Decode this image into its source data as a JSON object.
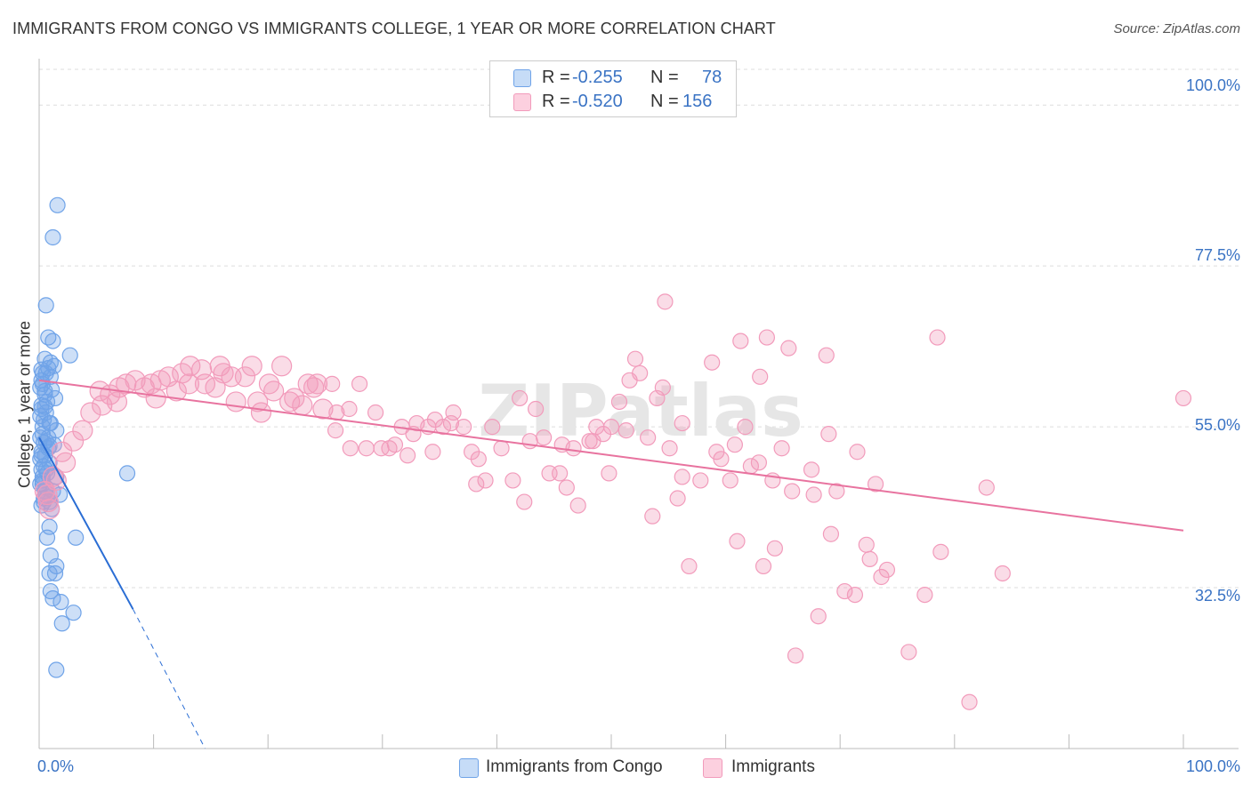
{
  "title": "IMMIGRANTS FROM CONGO VS IMMIGRANTS COLLEGE, 1 YEAR OR MORE CORRELATION CHART",
  "source": "Source: ZipAtlas.com",
  "watermark": "ZIPatlas",
  "colors": {
    "blue": "#6fa3e8",
    "blue_line": "#2a6dd4",
    "pink": "#f29bbb",
    "pink_line": "#e8739f",
    "axis_text": "#3a73c4"
  },
  "legend": {
    "rows": [
      {
        "r_label": "R = ",
        "r_value": "-0.255",
        "n_label": "N = ",
        "n_value": "78",
        "color": "blue"
      },
      {
        "r_label": "R = ",
        "r_value": "-0.520",
        "n_label": "N = ",
        "n_value": "156",
        "color": "pink"
      }
    ]
  },
  "bottom_legend": [
    "Immigrants from Congo",
    "Immigrants"
  ],
  "chart_data": {
    "type": "scatter",
    "title": "IMMIGRANTS FROM CONGO VS IMMIGRANTS COLLEGE, 1 YEAR OR MORE CORRELATION CHART",
    "xlabel": "",
    "ylabel": "College, 1 year or more",
    "xlim": [
      0,
      100
    ],
    "ylim": [
      10,
      105
    ],
    "x_tick_labels": [
      "0.0%",
      "100.0%"
    ],
    "y_tick_labels": [
      "100.0%",
      "77.5%",
      "55.0%",
      "32.5%"
    ],
    "y_ticks": [
      100,
      77.5,
      55,
      32.5
    ],
    "grid": true,
    "series": [
      {
        "name": "Immigrants from Congo",
        "color": "blue",
        "points": [
          [
            1.6,
            86
          ],
          [
            1.2,
            81.5
          ],
          [
            0.6,
            72
          ],
          [
            0.8,
            67.5
          ],
          [
            1.2,
            67
          ],
          [
            2.7,
            65
          ],
          [
            0.5,
            64.5
          ],
          [
            1.0,
            64
          ],
          [
            1.3,
            63.5
          ],
          [
            0.2,
            63
          ],
          [
            0.6,
            62.5
          ],
          [
            1.0,
            62
          ],
          [
            0.3,
            61
          ],
          [
            0.1,
            60.5
          ],
          [
            0.5,
            59.5
          ],
          [
            1.4,
            59
          ],
          [
            0.7,
            58.5
          ],
          [
            0.2,
            57.5
          ],
          [
            0.1,
            56.5
          ],
          [
            0.4,
            56
          ],
          [
            0.9,
            55.5
          ],
          [
            1.5,
            54.5
          ],
          [
            0.3,
            54
          ],
          [
            0.1,
            53.5
          ],
          [
            0.6,
            53
          ],
          [
            1.3,
            52.5
          ],
          [
            0.8,
            52
          ],
          [
            0.2,
            51.5
          ],
          [
            0.5,
            51
          ],
          [
            0.1,
            50.5
          ],
          [
            0.9,
            50
          ],
          [
            0.4,
            49.5
          ],
          [
            0.2,
            49
          ],
          [
            0.7,
            48.5
          ],
          [
            1.5,
            48
          ],
          [
            0.3,
            47.5
          ],
          [
            0.1,
            47
          ],
          [
            0.6,
            46.5
          ],
          [
            1.2,
            46
          ],
          [
            1.8,
            45.5
          ],
          [
            0.4,
            45
          ],
          [
            0.9,
            44.5
          ],
          [
            0.2,
            44
          ],
          [
            1.1,
            43.5
          ],
          [
            7.7,
            48.5
          ],
          [
            0.9,
            41
          ],
          [
            0.7,
            39.5
          ],
          [
            3.2,
            39.5
          ],
          [
            1.0,
            37
          ],
          [
            1.5,
            35.5
          ],
          [
            0.9,
            34.5
          ],
          [
            1.4,
            34.5
          ],
          [
            1.0,
            32
          ],
          [
            1.2,
            31
          ],
          [
            1.9,
            30.5
          ],
          [
            3.0,
            29
          ],
          [
            2.0,
            27.5
          ],
          [
            1.5,
            21
          ],
          [
            0.3,
            62.5
          ],
          [
            0.5,
            60
          ],
          [
            0.2,
            58
          ],
          [
            0.6,
            57
          ],
          [
            0.3,
            55
          ],
          [
            0.8,
            53.5
          ],
          [
            0.4,
            52.8
          ],
          [
            0.2,
            51
          ],
          [
            0.6,
            49
          ],
          [
            0.3,
            47
          ],
          [
            0.5,
            46
          ],
          [
            0.7,
            45.2
          ],
          [
            0.4,
            44.5
          ],
          [
            1.0,
            55.5
          ],
          [
            0.2,
            61.5
          ],
          [
            0.8,
            63.2
          ],
          [
            0.3,
            48
          ],
          [
            0.9,
            52.3
          ],
          [
            0.5,
            57.8
          ],
          [
            1.1,
            60.2
          ]
        ],
        "trend": {
          "x0": 0,
          "y0": 53.5,
          "x1": 8.2,
          "y1": 29.5,
          "dash_x1": 14.5,
          "dash_y1": 10
        }
      },
      {
        "name": "Immigrants",
        "color": "pink",
        "points": [
          [
            0.5,
            46
          ],
          [
            0.8,
            44.5
          ],
          [
            1.2,
            48
          ],
          [
            2.0,
            51.5
          ],
          [
            3.0,
            53
          ],
          [
            3.8,
            54.5
          ],
          [
            4.5,
            57
          ],
          [
            5.5,
            58
          ],
          [
            6.2,
            59.5
          ],
          [
            5.3,
            60
          ],
          [
            7.0,
            60.5
          ],
          [
            7.6,
            61
          ],
          [
            8.4,
            61.5
          ],
          [
            9.2,
            60.5
          ],
          [
            10.2,
            59
          ],
          [
            10.6,
            61.5
          ],
          [
            11.3,
            62
          ],
          [
            12.5,
            62.5
          ],
          [
            13.1,
            61
          ],
          [
            13.2,
            63.5
          ],
          [
            14.2,
            63
          ],
          [
            14.5,
            61
          ],
          [
            15.4,
            60.5
          ],
          [
            15.8,
            63.5
          ],
          [
            16.8,
            62
          ],
          [
            17.2,
            58.5
          ],
          [
            18.0,
            62
          ],
          [
            18.6,
            63.5
          ],
          [
            19.1,
            58.5
          ],
          [
            19.4,
            57
          ],
          [
            20.1,
            61
          ],
          [
            21.2,
            63.5
          ],
          [
            22.3,
            59
          ],
          [
            21.9,
            58.5
          ],
          [
            23.0,
            58
          ],
          [
            23.5,
            61
          ],
          [
            24.0,
            60.5
          ],
          [
            24.8,
            57.5
          ],
          [
            25.6,
            61
          ],
          [
            26.0,
            57
          ],
          [
            25.9,
            54.5
          ],
          [
            27.1,
            57.5
          ],
          [
            28.0,
            61
          ],
          [
            28.6,
            52
          ],
          [
            27.2,
            52
          ],
          [
            29.4,
            57
          ],
          [
            29.9,
            52
          ],
          [
            30.6,
            52
          ],
          [
            31.1,
            52.5
          ],
          [
            31.7,
            55
          ],
          [
            32.2,
            51
          ],
          [
            32.7,
            54
          ],
          [
            33.0,
            55.5
          ],
          [
            34.0,
            55
          ],
          [
            34.6,
            56
          ],
          [
            34.4,
            51.5
          ],
          [
            35.3,
            55
          ],
          [
            36.0,
            55.5
          ],
          [
            36.2,
            57
          ],
          [
            37.1,
            55
          ],
          [
            37.8,
            51.5
          ],
          [
            38.4,
            50.5
          ],
          [
            39.0,
            47.5
          ],
          [
            38.2,
            47
          ],
          [
            39.6,
            55
          ],
          [
            40.4,
            52
          ],
          [
            41.4,
            47.5
          ],
          [
            42.0,
            59
          ],
          [
            42.4,
            44.5
          ],
          [
            42.9,
            53
          ],
          [
            43.4,
            57.5
          ],
          [
            44.1,
            53.5
          ],
          [
            44.6,
            48.5
          ],
          [
            45.5,
            48.5
          ],
          [
            45.7,
            52.5
          ],
          [
            46.1,
            46.5
          ],
          [
            46.7,
            52
          ],
          [
            47.1,
            44
          ],
          [
            48.1,
            53
          ],
          [
            48.4,
            53
          ],
          [
            48.7,
            55
          ],
          [
            49.3,
            54
          ],
          [
            50.0,
            55
          ],
          [
            49.8,
            48.5
          ],
          [
            50.7,
            58.5
          ],
          [
            51.3,
            54.5
          ],
          [
            51.6,
            61.5
          ],
          [
            52.1,
            64.5
          ],
          [
            52.5,
            62.5
          ],
          [
            53.2,
            53.5
          ],
          [
            53.6,
            42.5
          ],
          [
            54.0,
            59
          ],
          [
            54.5,
            60.5
          ],
          [
            54.7,
            72.5
          ],
          [
            55.1,
            52
          ],
          [
            55.8,
            45
          ],
          [
            56.2,
            48
          ],
          [
            56.2,
            55.5
          ],
          [
            56.8,
            35.5
          ],
          [
            57.8,
            47.5
          ],
          [
            58.8,
            64
          ],
          [
            59.2,
            51.5
          ],
          [
            59.6,
            50.5
          ],
          [
            60.4,
            47.5
          ],
          [
            60.8,
            52.5
          ],
          [
            61.0,
            39
          ],
          [
            61.3,
            67
          ],
          [
            61.7,
            55
          ],
          [
            62.2,
            49.5
          ],
          [
            62.9,
            50
          ],
          [
            63.0,
            62
          ],
          [
            63.3,
            35.5
          ],
          [
            63.6,
            67.5
          ],
          [
            64.1,
            47.5
          ],
          [
            64.3,
            38
          ],
          [
            64.9,
            52
          ],
          [
            65.5,
            66
          ],
          [
            65.8,
            46
          ],
          [
            66.1,
            23
          ],
          [
            67.5,
            49
          ],
          [
            67.7,
            45.5
          ],
          [
            68.1,
            28.5
          ],
          [
            68.8,
            65
          ],
          [
            69.0,
            54
          ],
          [
            69.2,
            40
          ],
          [
            69.7,
            46
          ],
          [
            70.4,
            32
          ],
          [
            71.3,
            31.5
          ],
          [
            71.5,
            51.5
          ],
          [
            72.3,
            38.5
          ],
          [
            72.6,
            36.5
          ],
          [
            73.1,
            47
          ],
          [
            73.6,
            34
          ],
          [
            74.1,
            35
          ],
          [
            76.0,
            23.5
          ],
          [
            77.4,
            31.5
          ],
          [
            78.5,
            67.5
          ],
          [
            78.8,
            37.5
          ],
          [
            81.3,
            16.5
          ],
          [
            82.8,
            46.5
          ],
          [
            84.2,
            34.5
          ],
          [
            100.0,
            59
          ],
          [
            0.7,
            45.5
          ],
          [
            1.5,
            47.5
          ],
          [
            2.3,
            50
          ],
          [
            0.9,
            43.5
          ],
          [
            6.8,
            58.5
          ],
          [
            9.8,
            61
          ],
          [
            12.0,
            60
          ],
          [
            16.1,
            62.5
          ],
          [
            20.5,
            60
          ],
          [
            24.3,
            61
          ]
        ],
        "trend": {
          "x0": 0,
          "y0": 61.5,
          "x1": 100,
          "y1": 40.5
        }
      }
    ]
  }
}
